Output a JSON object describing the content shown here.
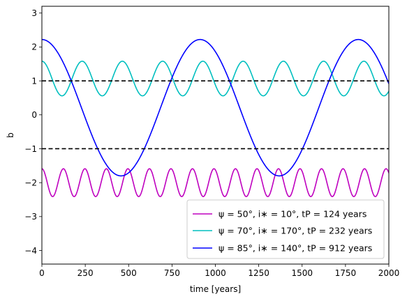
{
  "chart_data": {
    "type": "line",
    "xlabel": "time [years]",
    "ylabel": "b",
    "xlim": [
      0,
      2000
    ],
    "ylim": [
      -4.4,
      3.2
    ],
    "xticks": [
      0,
      250,
      500,
      750,
      1000,
      1250,
      1500,
      1750,
      2000
    ],
    "yticks": [
      -4,
      -3,
      -2,
      -1,
      0,
      1,
      2,
      3
    ],
    "grid": false,
    "legend_position": "lower-right",
    "reference_lines": [
      {
        "y": 1,
        "style": "dashed",
        "color": "#000000"
      },
      {
        "y": -1,
        "style": "dashed",
        "color": "#000000"
      }
    ],
    "series": [
      {
        "name": "ψ = 50°, i∗ = 10°, tP = 124 years",
        "legend_parts": {
          "psi": "ψ = 50°",
          "i": "i∗ = 10°",
          "tp": "tP = 124 years"
        },
        "color": "#bf00bf",
        "period": 124,
        "mean": -2.0,
        "amplitude": 0.41,
        "phase_at_zero": 0.0,
        "values_at_peaks": {
          "max": -1.59,
          "min": -2.41
        }
      },
      {
        "name": "ψ = 70°, i∗ = 170°, tP = 232 years",
        "legend_parts": {
          "psi": "ψ = 70°",
          "i": "i∗ = 170°",
          "tp": "tP = 232 years"
        },
        "color": "#00bfbf",
        "period": 232,
        "mean": 1.07,
        "amplitude": 0.51,
        "phase_at_zero": 0.0,
        "values_at_peaks": {
          "max": 1.58,
          "min": 0.56
        }
      },
      {
        "name": "ψ = 85°, i∗ = 140°, tP = 912 years",
        "legend_parts": {
          "psi": "ψ = 85°",
          "i": "i∗ = 140°",
          "tp": "tP = 912 years"
        },
        "color": "#0000ff",
        "period": 912,
        "mean": 0.21,
        "amplitude": 2.01,
        "phase_at_zero": 0.0,
        "values_at_peaks": {
          "max": 2.22,
          "min": -1.8
        }
      }
    ]
  },
  "axes": {
    "xtick_labels": [
      "0",
      "250",
      "500",
      "750",
      "1000",
      "1250",
      "1500",
      "1750",
      "2000"
    ],
    "ytick_labels": [
      "−4",
      "−3",
      "−2",
      "−1",
      "0",
      "1",
      "2",
      "3"
    ]
  }
}
